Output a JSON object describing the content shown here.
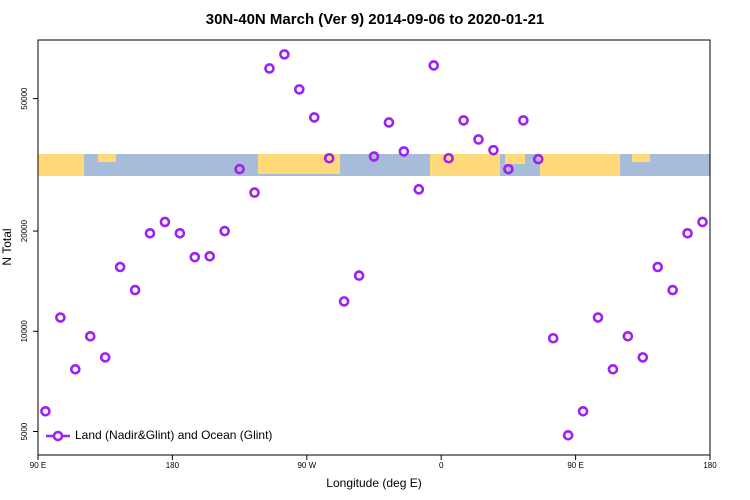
{
  "chart_data": {
    "type": "scatter",
    "title": "30N-40N March (Ver 9)   2014-09-06 to 2020-01-21",
    "x_label": "Longitude (deg E)",
    "y_label": "N Total",
    "ylog": true,
    "legend": "bottom-left",
    "xlim": [
      90,
      540
    ],
    "ylim": [
      4250,
      75000
    ],
    "xticks": [
      {
        "value": 90,
        "label": "90 E"
      },
      {
        "value": 180,
        "label": "180"
      },
      {
        "value": 270,
        "label": "90 W"
      },
      {
        "value": 360,
        "label": "0"
      },
      {
        "value": 450,
        "label": "90 E"
      },
      {
        "value": 540,
        "label": "180"
      }
    ],
    "yticks": [
      5000,
      10000,
      20000,
      50000
    ],
    "x": [
      95,
      105,
      115,
      125,
      135,
      145,
      155,
      165,
      175,
      185,
      195,
      205,
      215,
      225,
      235,
      245,
      255,
      265,
      275,
      285,
      295,
      305,
      315,
      325,
      335,
      345,
      355,
      365,
      375,
      385,
      395,
      405,
      415,
      425,
      435,
      445,
      455,
      465,
      475,
      485,
      495,
      505,
      515,
      525,
      535
    ],
    "series": [
      {
        "name": "Land (Nadir&Glint) and Ocean (Glint)",
        "color": "#a020f0",
        "values": [
          5750,
          11000,
          7690,
          9660,
          8350,
          15600,
          13300,
          19700,
          21300,
          19700,
          16700,
          16800,
          20000,
          30700,
          26100,
          61600,
          67900,
          53300,
          43900,
          33100,
          12300,
          14700,
          33500,
          42400,
          34700,
          26700,
          62900,
          33100,
          43000,
          37700,
          35000,
          30700,
          43000,
          32900,
          9530,
          4870,
          5750,
          11000,
          7690,
          9660,
          8350,
          15600,
          13300,
          19700,
          21300
        ]
      }
    ]
  }
}
